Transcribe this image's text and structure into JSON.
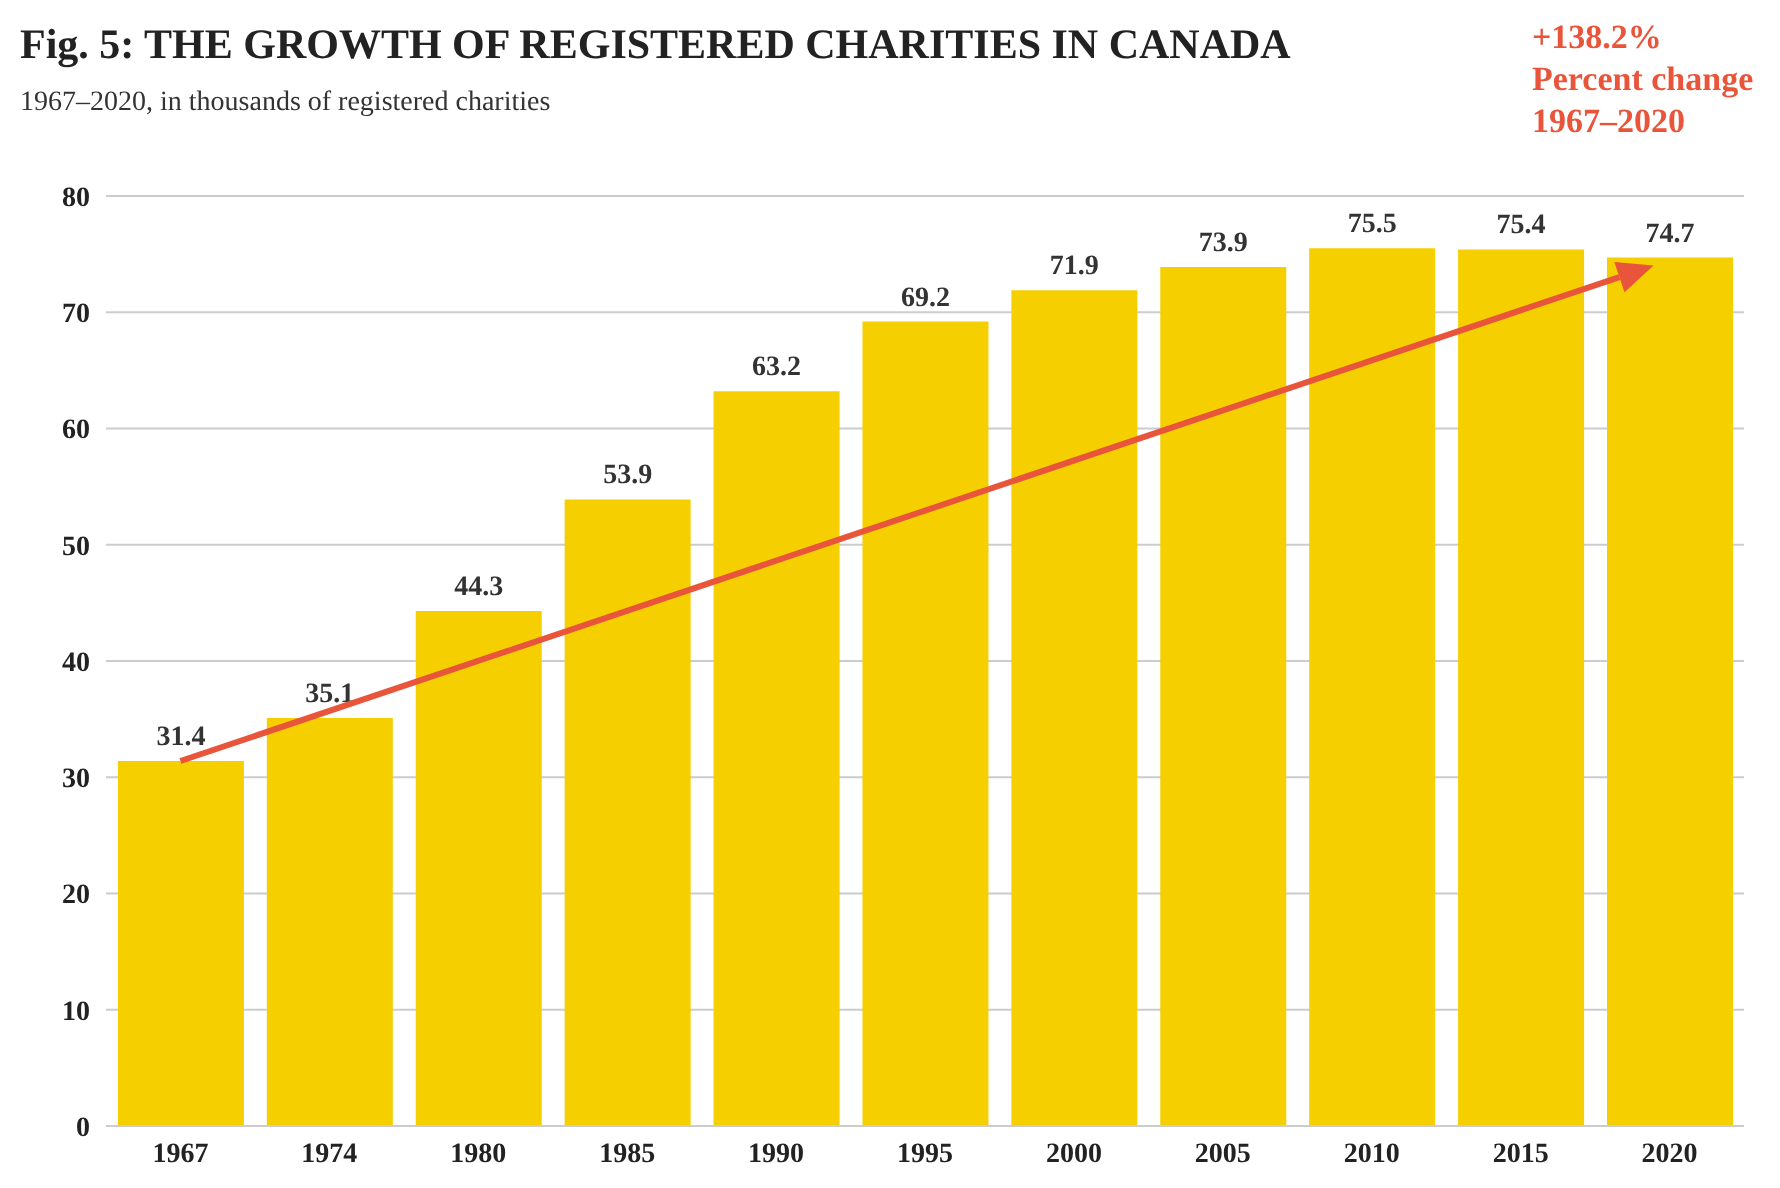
{
  "chart_data": {
    "type": "bar",
    "title": "Fig. 5: THE GROWTH OF REGISTERED CHARITIES IN CANADA",
    "subtitle": "1967–2020, in thousands of registered charities",
    "categories": [
      "1967",
      "1974",
      "1980",
      "1985",
      "1990",
      "1995",
      "2000",
      "2005",
      "2010",
      "2015",
      "2020"
    ],
    "values": [
      31.4,
      35.1,
      44.3,
      53.9,
      63.2,
      69.2,
      71.9,
      73.9,
      75.5,
      75.4,
      74.7
    ],
    "color": "#f5cf00",
    "ylim": [
      0,
      80
    ],
    "yticks": [
      0,
      10,
      20,
      30,
      40,
      50,
      60,
      70,
      80
    ],
    "grid": "y",
    "data_labels": true,
    "annotations": [
      "+138.2%\nPercent change\n1967–2020"
    ]
  }
}
